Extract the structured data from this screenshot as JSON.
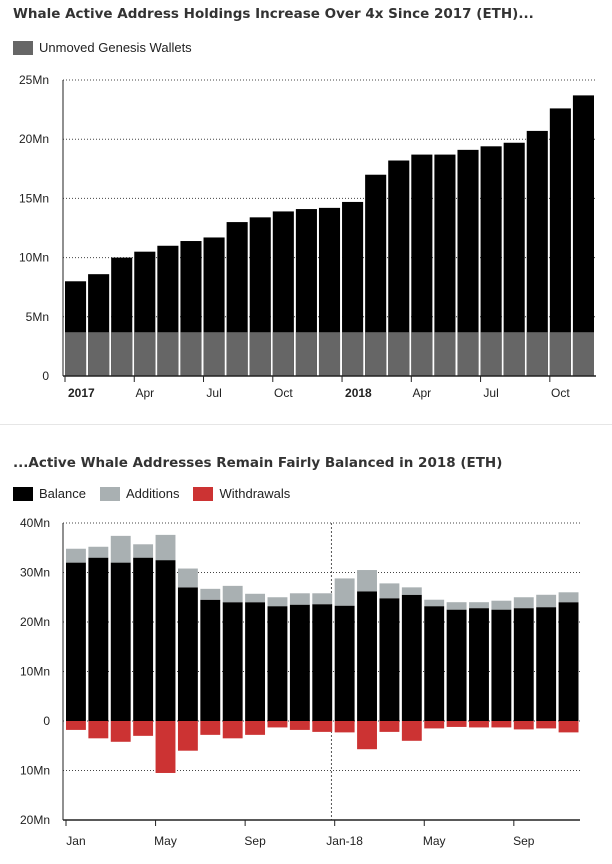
{
  "colors": {
    "genesis": "#666666",
    "balance": "#000000",
    "additions": "#a9b0b2",
    "withdrawals": "#cc3333"
  },
  "chart_data": [
    {
      "type": "bar",
      "title": "Whale Active Address Holdings Increase Over 4x Since 2017 (ETH)...",
      "legend": [
        {
          "label": "Unmoved Genesis Wallets",
          "color": "#666666"
        }
      ],
      "ylim": [
        0,
        25
      ],
      "yticks": [
        {
          "value": 0,
          "label": "0"
        },
        {
          "value": 5,
          "label": "5Mn"
        },
        {
          "value": 10,
          "label": "10Mn"
        },
        {
          "value": 15,
          "label": "15Mn"
        },
        {
          "value": 20,
          "label": "20Mn"
        },
        {
          "value": 25,
          "label": "25Mn"
        }
      ],
      "x_labels": [
        {
          "index": 0,
          "label": "2017",
          "bold": true
        },
        {
          "index": 3,
          "label": "Apr",
          "bold": false
        },
        {
          "index": 6,
          "label": "Jul",
          "bold": false
        },
        {
          "index": 9,
          "label": "Oct",
          "bold": false
        },
        {
          "index": 12,
          "label": "2018",
          "bold": true
        },
        {
          "index": 15,
          "label": "Apr",
          "bold": false
        },
        {
          "index": 18,
          "label": "Jul",
          "bold": false
        },
        {
          "index": 21,
          "label": "Oct",
          "bold": false
        }
      ],
      "genesis_value": 3.7,
      "series": [
        {
          "name": "Unmoved Genesis Wallets",
          "values": [
            8.0,
            8.6,
            10.0,
            10.5,
            11.0,
            11.4,
            11.7,
            13.0,
            13.4,
            13.9,
            14.1,
            14.2,
            14.7,
            17.0,
            18.2,
            18.7,
            18.7,
            19.1,
            19.4,
            19.7,
            20.7,
            22.6,
            23.7
          ]
        }
      ]
    },
    {
      "type": "bar",
      "title": "...Active Whale Addresses Remain Fairly Balanced in 2018 (ETH)",
      "legend": [
        {
          "label": "Balance",
          "color": "#000000"
        },
        {
          "label": "Additions",
          "color": "#a9b0b2"
        },
        {
          "label": "Withdrawals",
          "color": "#cc3333"
        }
      ],
      "ylim": [
        -20,
        40
      ],
      "yticks": [
        {
          "value": 40,
          "label": "40Mn"
        },
        {
          "value": 30,
          "label": "30Mn"
        },
        {
          "value": 20,
          "label": "20Mn"
        },
        {
          "value": 10,
          "label": "10Mn"
        },
        {
          "value": 0,
          "label": "0"
        },
        {
          "value": -10,
          "label": "10Mn"
        },
        {
          "value": -20,
          "label": "20Mn"
        }
      ],
      "x_labels": [
        {
          "index": 0,
          "label": "Jan"
        },
        {
          "index": 4,
          "label": "May"
        },
        {
          "index": 8,
          "label": "Sep"
        },
        {
          "index": 12,
          "label": "Jan-18"
        },
        {
          "index": 16,
          "label": "May"
        },
        {
          "index": 20,
          "label": "Sep"
        }
      ],
      "divider_index": 12,
      "series": [
        {
          "name": "Balance",
          "values": [
            32.0,
            33.0,
            32.0,
            33.0,
            32.5,
            27.0,
            24.5,
            24.0,
            24.0,
            23.2,
            23.5,
            23.6,
            23.3,
            26.2,
            24.8,
            25.5,
            23.2,
            22.5,
            22.8,
            22.5,
            22.8,
            23.0,
            24.0
          ]
        },
        {
          "name": "Additions",
          "values": [
            2.8,
            2.2,
            5.4,
            2.7,
            5.1,
            3.8,
            2.2,
            3.3,
            1.7,
            1.8,
            2.3,
            2.2,
            5.5,
            4.3,
            3.0,
            1.5,
            1.3,
            1.5,
            1.2,
            1.8,
            2.2,
            2.5,
            2.0
          ]
        },
        {
          "name": "Withdrawals",
          "values": [
            -1.8,
            -3.5,
            -4.2,
            -3.0,
            -10.5,
            -6.0,
            -2.8,
            -3.5,
            -2.8,
            -1.3,
            -1.8,
            -2.2,
            -2.3,
            -5.7,
            -2.2,
            -4.0,
            -1.5,
            -1.2,
            -1.3,
            -1.3,
            -1.7,
            -1.5,
            -2.3
          ]
        }
      ]
    }
  ]
}
